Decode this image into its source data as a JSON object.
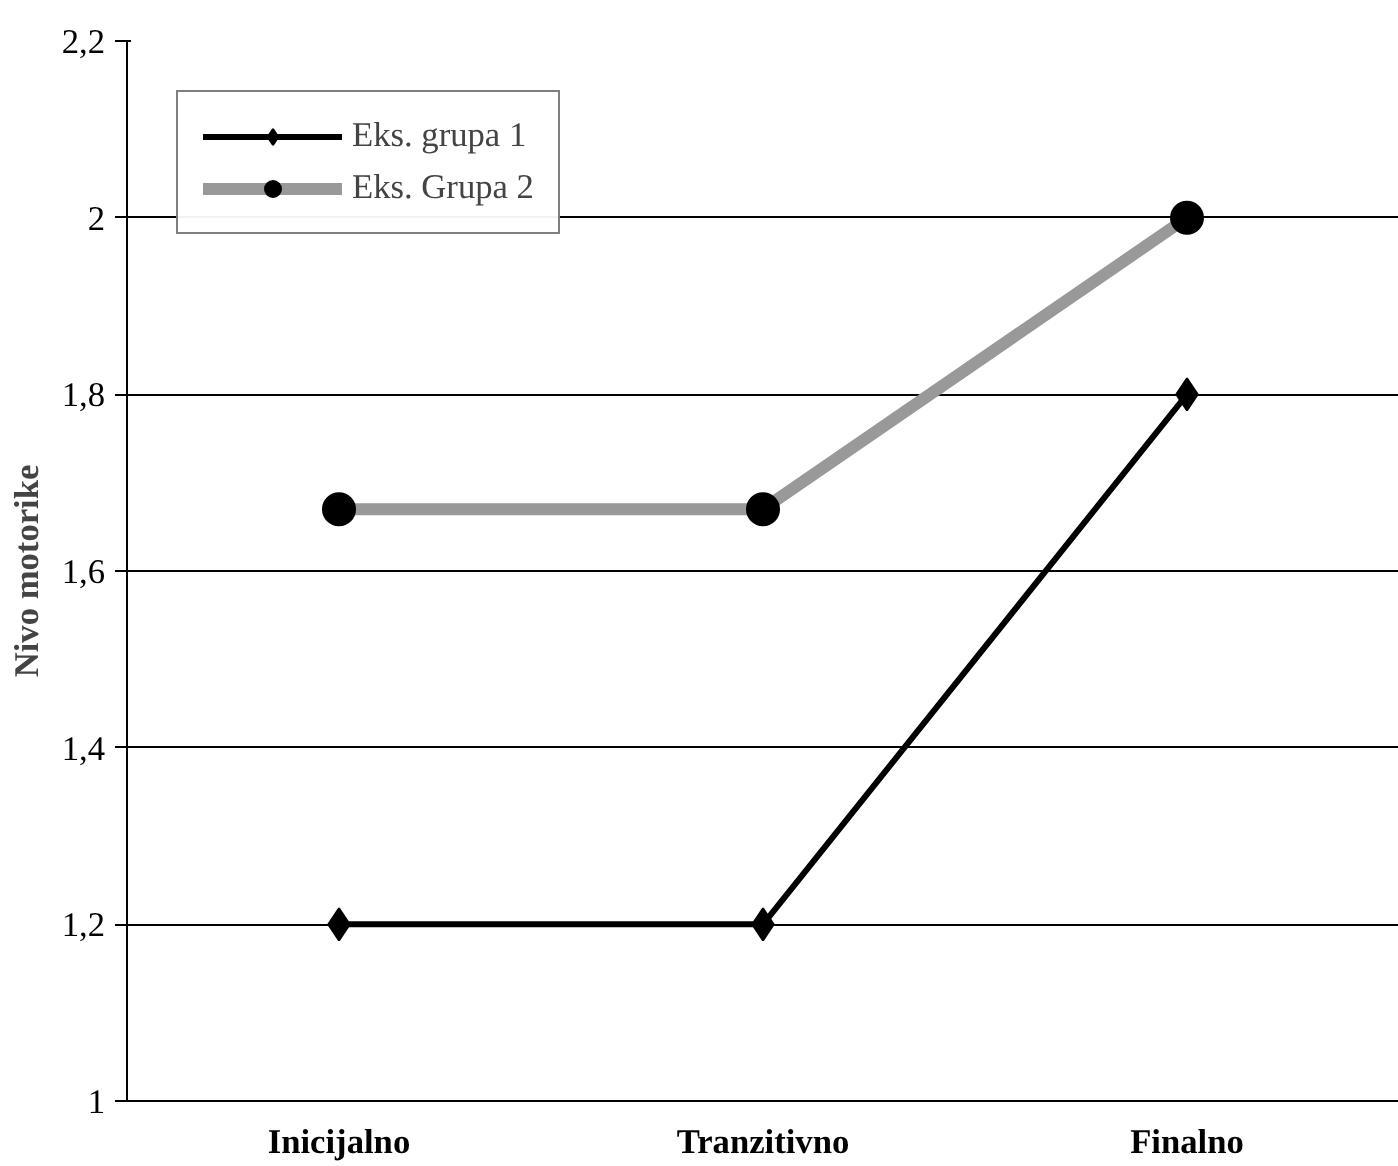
{
  "chart_data": {
    "type": "line",
    "ylabel": "Nivo motorike",
    "categories": [
      "Inicijalno",
      "Tranzitivno",
      "Finalno"
    ],
    "series": [
      {
        "name": "Eks. grupa 1",
        "color": "#000000",
        "marker": "diamond",
        "values": [
          1.2,
          1.2,
          1.8
        ]
      },
      {
        "name": "Eks. Grupa 2",
        "color": "#999999",
        "marker": "circle",
        "values": [
          1.67,
          1.67,
          2.0
        ]
      }
    ],
    "ylim": [
      1,
      2.2
    ],
    "yticks": [
      1,
      {
        "value": 1.2,
        "label": "1,2"
      },
      {
        "value": 1.4,
        "label": "1,4"
      },
      {
        "value": 1.6,
        "label": "1,6"
      },
      {
        "value": 1.8,
        "label": "1,8"
      },
      2,
      {
        "value": 2.2,
        "label": "2,2"
      }
    ],
    "grid": "y",
    "legend": "top left",
    "line_style": "solid"
  }
}
